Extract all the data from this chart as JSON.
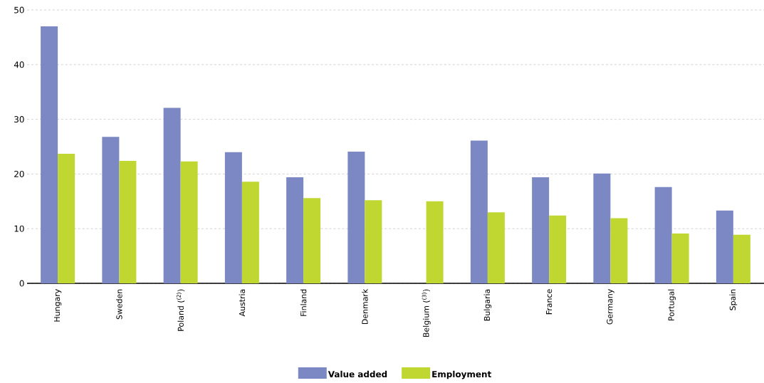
{
  "chart_data": {
    "type": "bar",
    "categories": [
      "Hungary",
      "Sweden",
      "Poland ($^{(2)}$)",
      "Austria",
      "Finland",
      "Denmark",
      "Belgium ($^{(3)}$)",
      "Bulgaria",
      "France",
      "Germany",
      "Portugal",
      "Spain"
    ],
    "series": [
      {
        "name": "Value added",
        "color": "#7b88c3",
        "values": [
          47.0,
          26.8,
          32.1,
          24.0,
          19.4,
          24.1,
          null,
          26.1,
          19.4,
          20.1,
          17.6,
          13.3
        ]
      },
      {
        "name": "Employment",
        "color": "#bfd730",
        "values": [
          23.7,
          22.4,
          22.3,
          18.6,
          15.6,
          15.2,
          15.0,
          13.0,
          12.4,
          11.9,
          9.1,
          8.9
        ]
      }
    ],
    "ylim": [
      0,
      50
    ],
    "yticks": [
      0,
      10,
      20,
      30,
      40,
      50
    ],
    "grid": "y",
    "legend": "bottom"
  }
}
